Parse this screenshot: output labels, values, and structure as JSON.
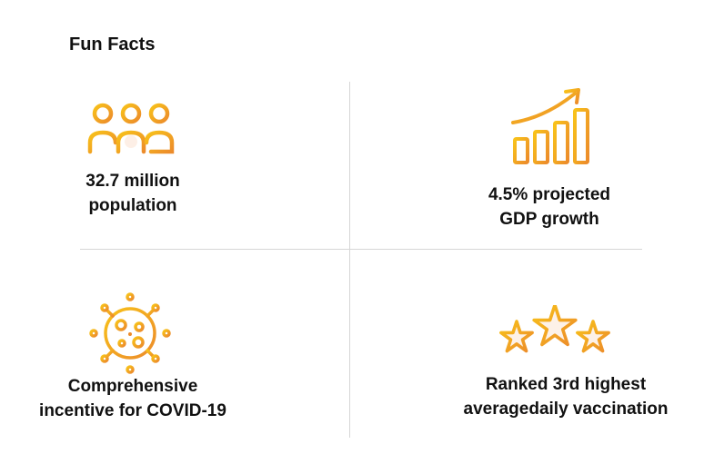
{
  "title": "Fun Facts",
  "colors": {
    "accent_light": "#f8c21a",
    "accent_dark": "#ec8b2b"
  },
  "facts": [
    {
      "icon": "people-icon",
      "line1": "32.7 million",
      "line2": "population"
    },
    {
      "icon": "growth-chart-icon",
      "line1": "4.5% projected",
      "line2": "GDP growth"
    },
    {
      "icon": "virus-icon",
      "line1": "Comprehensive",
      "line2": "incentive for COVID-19"
    },
    {
      "icon": "stars-icon",
      "line1": "Ranked 3rd highest",
      "line2": "averagedaily vaccination"
    }
  ]
}
